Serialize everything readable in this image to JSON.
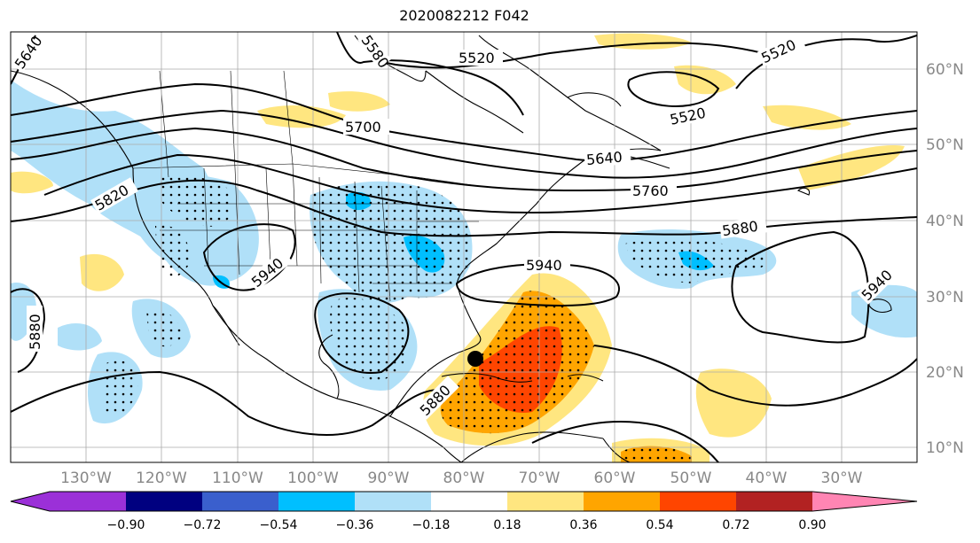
{
  "title": "2020082212 F042",
  "map": {
    "lon_labels": [
      "130°W",
      "120°W",
      "110°W",
      "100°W",
      "90°W",
      "80°W",
      "70°W",
      "60°W",
      "50°W",
      "40°W",
      "30°W"
    ],
    "lat_labels": [
      "60°N",
      "50°N",
      "40°N",
      "30°N",
      "20°N",
      "10°N"
    ],
    "contour_labels": [
      "5640",
      "5580",
      "5520",
      "5520",
      "5520",
      "5700",
      "5640",
      "5760",
      "5820",
      "5880",
      "5940",
      "5940",
      "5940",
      "5880",
      "5880"
    ],
    "storm_marker": "black-dot"
  },
  "colorbar": {
    "ticks": [
      "−0.90",
      "−0.72",
      "−0.54",
      "−0.36",
      "−0.18",
      "0.18",
      "0.36",
      "0.54",
      "0.72",
      "0.90"
    ],
    "colors": [
      "#9b30d8",
      "#000080",
      "#3a5fcd",
      "#00bfff",
      "#b0e0f8",
      "#ffffff",
      "#ffe680",
      "#ffa500",
      "#ff4500",
      "#b22222",
      "#ff85b3"
    ]
  }
}
